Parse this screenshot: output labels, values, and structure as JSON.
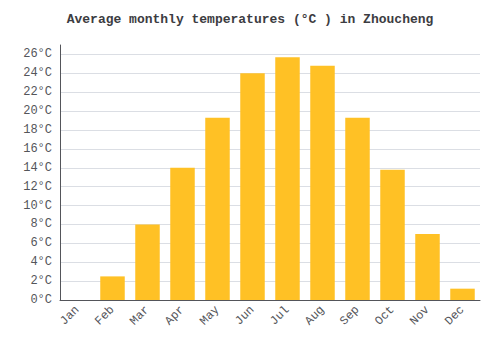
{
  "chart_data": {
    "type": "bar",
    "title": "Average monthly temperatures (°C ) in Zhoucheng",
    "categories": [
      "Jan",
      "Feb",
      "Mar",
      "Apr",
      "May",
      "Jun",
      "Jul",
      "Aug",
      "Sep",
      "Oct",
      "Nov",
      "Dec"
    ],
    "values": [
      0,
      2.5,
      8,
      14,
      19.3,
      24,
      25.7,
      24.8,
      19.3,
      13.8,
      7,
      1.2
    ],
    "color": "#FFC125",
    "ylim": [
      0,
      27
    ],
    "yticks": [
      {
        "value": 0,
        "label": "0°C"
      },
      {
        "value": 2,
        "label": "2°C"
      },
      {
        "value": 4,
        "label": "4°C"
      },
      {
        "value": 6,
        "label": "6°C"
      },
      {
        "value": 8,
        "label": "8°C"
      },
      {
        "value": 10,
        "label": "10°C"
      },
      {
        "value": 12,
        "label": "12°C"
      },
      {
        "value": 14,
        "label": "14°C"
      },
      {
        "value": 16,
        "label": "16°C"
      },
      {
        "value": 18,
        "label": "18°C"
      },
      {
        "value": 20,
        "label": "20°C"
      },
      {
        "value": 22,
        "label": "22°C"
      },
      {
        "value": 24,
        "label": "24°C"
      },
      {
        "value": 26,
        "label": "26°C"
      }
    ],
    "grid": true
  }
}
